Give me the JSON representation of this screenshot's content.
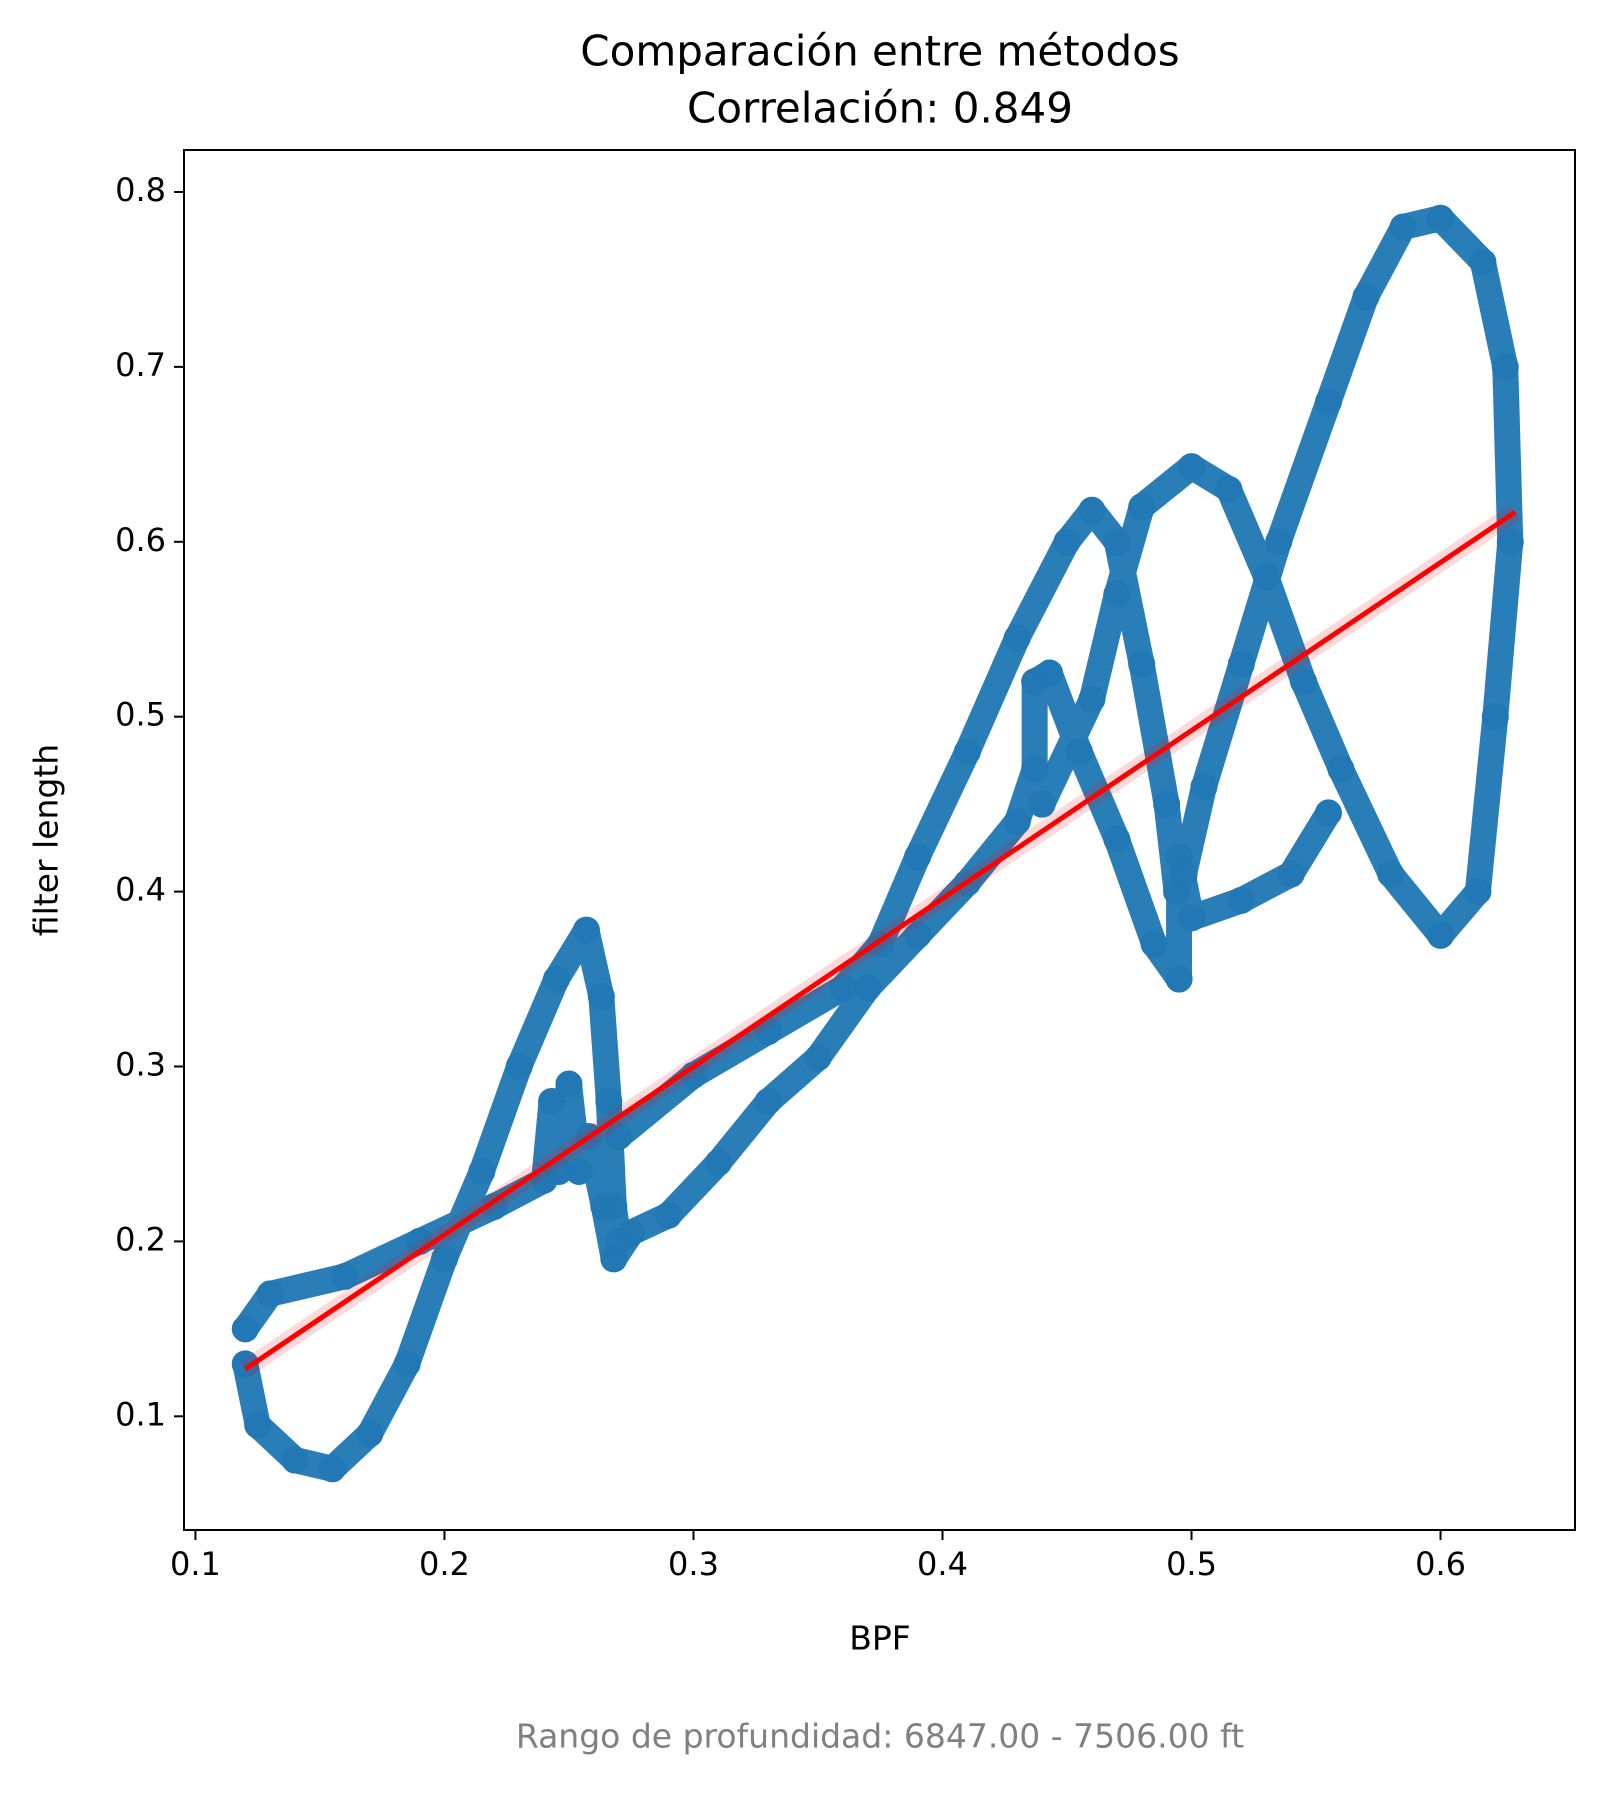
{
  "chart_data": {
    "type": "scatter",
    "title": "Comparación entre métodos",
    "subtitle": "Correlación: 0.849",
    "x_label": "BPF",
    "y_label": "filter length",
    "footnote": "Rango de profundidad: 6847.00 - 7506.00 ft",
    "xlim": [
      0.0954,
      0.654
    ],
    "ylim": [
      0.035,
      0.824
    ],
    "xticks": [
      0.1,
      0.2,
      0.3,
      0.4,
      0.5,
      0.6
    ],
    "yticks": [
      0.1,
      0.2,
      0.3,
      0.4,
      0.5,
      0.6,
      0.7,
      0.8
    ],
    "series": [
      {
        "color": "#1f77b4",
        "x": [
          0.12,
          0.13,
          0.16,
          0.19,
          0.22,
          0.24,
          0.243,
          0.246,
          0.25,
          0.254,
          0.258,
          0.264,
          0.268,
          0.275,
          0.29,
          0.31,
          0.33,
          0.35,
          0.37,
          0.39,
          0.41,
          0.43,
          0.437,
          0.437,
          0.443,
          0.455,
          0.47,
          0.485,
          0.495,
          0.495,
          0.5,
          0.52,
          0.54,
          0.555,
          null,
          0.12,
          0.125,
          0.14,
          0.155,
          0.17,
          0.185,
          0.2,
          0.215,
          0.23,
          0.245,
          0.257,
          0.263,
          0.266,
          0.268,
          0.27,
          null,
          0.27,
          0.3,
          0.33,
          0.36,
          0.375,
          0.39,
          0.41,
          0.43,
          0.45,
          0.46,
          0.47,
          0.48,
          0.49,
          0.494,
          null,
          0.44,
          0.46,
          0.47,
          0.48,
          0.5,
          0.515,
          0.53,
          0.545,
          0.56,
          0.58,
          0.6,
          0.615,
          0.622,
          0.628,
          0.626,
          0.617,
          0.6,
          0.585,
          0.57,
          0.555,
          0.535,
          0.52,
          0.505,
          0.497
        ],
        "y": [
          0.15,
          0.17,
          0.18,
          0.2,
          0.22,
          0.235,
          0.28,
          0.24,
          0.29,
          0.24,
          0.26,
          0.22,
          0.19,
          0.205,
          0.215,
          0.245,
          0.28,
          0.305,
          0.345,
          0.375,
          0.405,
          0.44,
          0.47,
          0.52,
          0.525,
          0.48,
          0.43,
          0.37,
          0.35,
          0.42,
          0.385,
          0.395,
          0.41,
          0.445,
          null,
          0.13,
          0.095,
          0.075,
          0.07,
          0.09,
          0.13,
          0.19,
          0.24,
          0.3,
          0.35,
          0.378,
          0.34,
          0.28,
          0.22,
          0.2,
          null,
          0.26,
          0.295,
          0.32,
          0.345,
          0.37,
          0.42,
          0.48,
          0.545,
          0.6,
          0.618,
          0.6,
          0.53,
          0.45,
          0.4,
          null,
          0.45,
          0.51,
          0.57,
          0.62,
          0.643,
          0.63,
          0.58,
          0.52,
          0.47,
          0.41,
          0.375,
          0.4,
          0.5,
          0.6,
          0.7,
          0.76,
          0.785,
          0.78,
          0.74,
          0.68,
          0.6,
          0.53,
          0.46,
          0.41
        ]
      }
    ],
    "regression": {
      "color": "#ff0000",
      "x": [
        0.12,
        0.63
      ],
      "y": [
        0.127,
        0.617
      ]
    }
  }
}
